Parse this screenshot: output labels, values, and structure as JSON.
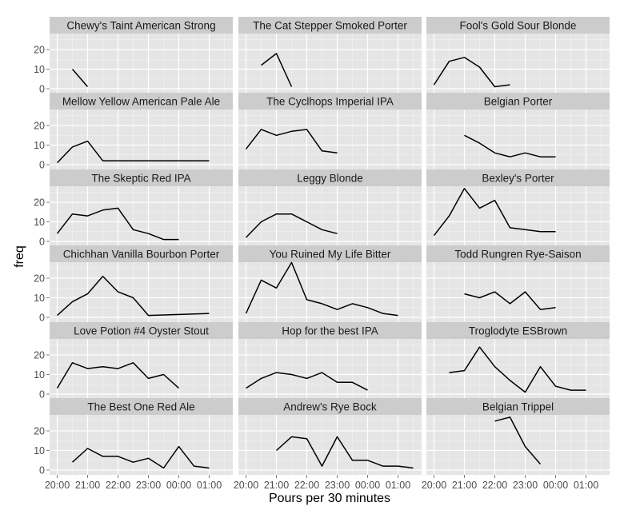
{
  "chart_data": {
    "type": "line",
    "xlabel": "Pours per 30 minutes",
    "ylabel": "freq",
    "x_ticks": [
      "20:00",
      "21:00",
      "22:00",
      "23:00",
      "00:00",
      "01:00"
    ],
    "y_ticks": [
      0,
      10,
      20
    ],
    "ylim": [
      0,
      28
    ],
    "grid": true,
    "facets": [
      {
        "title": "Chewy's Taint American Strong",
        "points": [
          [
            1,
            10
          ],
          [
            2,
            1
          ]
        ]
      },
      {
        "title": "The Cat Stepper Smoked Porter",
        "points": [
          [
            1,
            12
          ],
          [
            2,
            18
          ],
          [
            3,
            1
          ]
        ]
      },
      {
        "title": "Fool's Gold Sour Blonde",
        "points": [
          [
            0,
            2
          ],
          [
            1,
            14
          ],
          [
            2,
            16
          ],
          [
            3,
            11
          ],
          [
            4,
            1
          ],
          [
            5,
            2
          ]
        ]
      },
      {
        "title": "Mellow Yellow American Pale Ale",
        "points": [
          [
            0,
            1
          ],
          [
            1,
            9
          ],
          [
            2,
            12
          ],
          [
            3,
            2
          ],
          [
            4,
            2
          ],
          [
            5,
            2
          ],
          [
            6,
            2
          ],
          [
            7,
            2
          ],
          [
            8,
            2
          ],
          [
            9,
            2
          ],
          [
            10,
            2
          ]
        ]
      },
      {
        "title": "The Cyclhops Imperial IPA",
        "points": [
          [
            0,
            8
          ],
          [
            1,
            18
          ],
          [
            2,
            15
          ],
          [
            3,
            17
          ],
          [
            4,
            18
          ],
          [
            5,
            7
          ],
          [
            6,
            6
          ]
        ]
      },
      {
        "title": "Belgian Porter",
        "points": [
          [
            2,
            15
          ],
          [
            3,
            11
          ],
          [
            4,
            6
          ],
          [
            5,
            4
          ],
          [
            6,
            6
          ],
          [
            7,
            4
          ],
          [
            8,
            4
          ]
        ]
      },
      {
        "title": "The Skeptic Red IPA",
        "points": [
          [
            0,
            4
          ],
          [
            1,
            14
          ],
          [
            2,
            13
          ],
          [
            3,
            16
          ],
          [
            4,
            17
          ],
          [
            5,
            6
          ],
          [
            6,
            4
          ],
          [
            7,
            1
          ],
          [
            8,
            1
          ]
        ]
      },
      {
        "title": "Leggy Blonde",
        "points": [
          [
            0,
            2
          ],
          [
            1,
            10
          ],
          [
            2,
            14
          ],
          [
            3,
            14
          ],
          [
            4,
            10
          ],
          [
            5,
            6
          ],
          [
            6,
            4
          ]
        ]
      },
      {
        "title": "Bexley's Porter",
        "points": [
          [
            0,
            3
          ],
          [
            1,
            13
          ],
          [
            2,
            27
          ],
          [
            3,
            17
          ],
          [
            4,
            21
          ],
          [
            5,
            7
          ],
          [
            6,
            6
          ],
          [
            7,
            5
          ],
          [
            8,
            5
          ]
        ]
      },
      {
        "title": "Chichhan Vanilla Bourbon Porter",
        "points": [
          [
            0,
            1
          ],
          [
            1,
            8
          ],
          [
            2,
            12
          ],
          [
            3,
            21
          ],
          [
            4,
            13
          ],
          [
            5,
            10
          ],
          [
            6,
            1
          ],
          [
            10,
            2
          ]
        ]
      },
      {
        "title": "You Ruined My Life Bitter",
        "points": [
          [
            0,
            2
          ],
          [
            1,
            19
          ],
          [
            2,
            15
          ],
          [
            3,
            28
          ],
          [
            4,
            9
          ],
          [
            5,
            7
          ],
          [
            6,
            4
          ],
          [
            7,
            7
          ],
          [
            8,
            5
          ],
          [
            9,
            2
          ],
          [
            10,
            1
          ]
        ]
      },
      {
        "title": "Todd Rungren Rye-Saison",
        "points": [
          [
            2,
            12
          ],
          [
            3,
            10
          ],
          [
            4,
            13
          ],
          [
            5,
            7
          ],
          [
            6,
            13
          ],
          [
            7,
            4
          ],
          [
            8,
            5
          ]
        ]
      },
      {
        "title": "Love Potion #4 Oyster Stout",
        "points": [
          [
            0,
            3
          ],
          [
            1,
            16
          ],
          [
            2,
            13
          ],
          [
            3,
            14
          ],
          [
            4,
            13
          ],
          [
            5,
            16
          ],
          [
            6,
            8
          ],
          [
            7,
            10
          ],
          [
            8,
            3
          ]
        ]
      },
      {
        "title": "Hop for the best IPA",
        "points": [
          [
            0,
            3
          ],
          [
            1,
            8
          ],
          [
            2,
            11
          ],
          [
            3,
            10
          ],
          [
            4,
            8
          ],
          [
            5,
            11
          ],
          [
            6,
            6
          ],
          [
            7,
            6
          ],
          [
            8,
            2
          ]
        ]
      },
      {
        "title": "Troglodyte ESBrown",
        "points": [
          [
            1,
            11
          ],
          [
            2,
            12
          ],
          [
            3,
            24
          ],
          [
            4,
            14
          ],
          [
            5,
            7
          ],
          [
            6,
            1
          ],
          [
            7,
            14
          ],
          [
            8,
            4
          ],
          [
            9,
            2
          ],
          [
            10,
            2
          ]
        ]
      },
      {
        "title": "The Best One Red Ale",
        "points": [
          [
            1,
            4
          ],
          [
            2,
            11
          ],
          [
            3,
            7
          ],
          [
            4,
            7
          ],
          [
            5,
            4
          ],
          [
            6,
            6
          ],
          [
            7,
            1
          ],
          [
            8,
            12
          ],
          [
            9,
            2
          ],
          [
            10,
            1
          ]
        ]
      },
      {
        "title": "Andrew's Rye Bock",
        "points": [
          [
            2,
            10
          ],
          [
            3,
            17
          ],
          [
            4,
            16
          ],
          [
            5,
            2
          ],
          [
            6,
            17
          ],
          [
            7,
            5
          ],
          [
            8,
            5
          ],
          [
            9,
            2
          ],
          [
            10,
            2
          ],
          [
            11,
            1
          ]
        ]
      },
      {
        "title": "Belgian Trippel",
        "points": [
          [
            4,
            25
          ],
          [
            5,
            27
          ],
          [
            6,
            12
          ],
          [
            7,
            3
          ]
        ]
      }
    ]
  }
}
